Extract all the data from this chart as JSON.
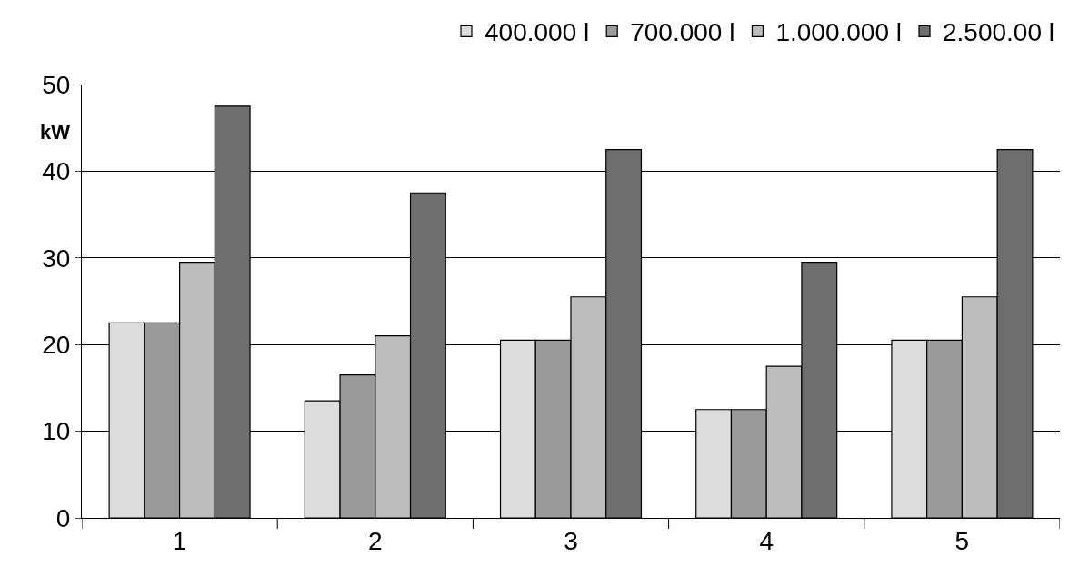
{
  "chart_data": {
    "type": "bar",
    "ylabel": "kW",
    "categories": [
      "1",
      "2",
      "3",
      "4",
      "5"
    ],
    "series": [
      {
        "name": "400.000 l",
        "color": "#dcdcdc",
        "values": [
          22.5,
          13.5,
          20.5,
          12.5,
          20.5
        ]
      },
      {
        "name": "700.000 l",
        "color": "#9a9a9a",
        "values": [
          22.5,
          16.5,
          20.5,
          12.5,
          20.5
        ]
      },
      {
        "name": "1.000.000 l",
        "color": "#bdbdbd",
        "values": [
          29.5,
          21,
          25.5,
          17.5,
          25.5
        ]
      },
      {
        "name": "2.500.00 l",
        "color": "#6e6e6e",
        "values": [
          47.5,
          37.5,
          42.5,
          29.5,
          42.5
        ]
      }
    ],
    "ylim": [
      0,
      50
    ],
    "yticks": [
      0,
      10,
      20,
      30,
      40,
      50
    ],
    "grid": "y",
    "legend": "top right"
  }
}
